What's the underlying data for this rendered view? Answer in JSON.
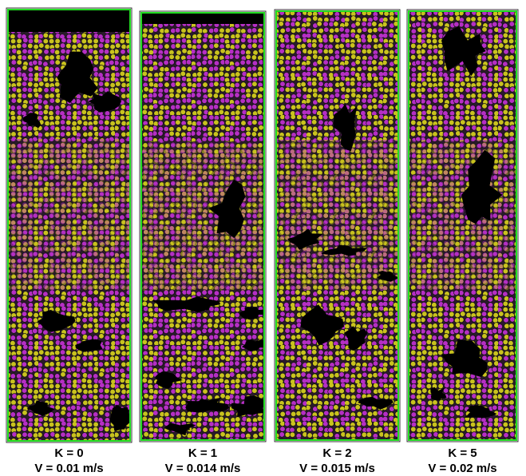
{
  "panels": [
    {
      "k_label": "K = 0",
      "v_label": "V = 0.01 m/s"
    },
    {
      "k_label": "K = 1",
      "v_label": "V = 0.014 m/s"
    },
    {
      "k_label": "K = 2",
      "v_label": "V = 0.015 m/s"
    },
    {
      "k_label": "K = 5",
      "v_label": "V = 0.02 m/s"
    }
  ]
}
